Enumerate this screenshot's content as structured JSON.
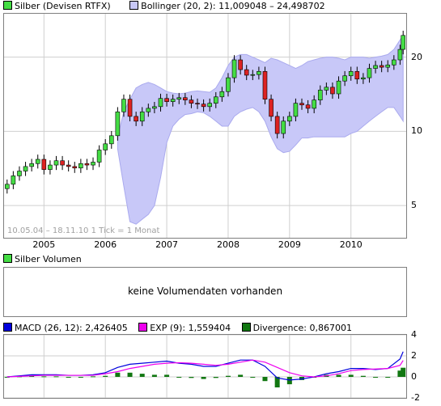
{
  "price_legend": {
    "series": [
      {
        "label": "Silber (Devisen RTFX)",
        "color": "#44dd44"
      },
      {
        "label": "Bollinger (20, 2): 11,009048 – 24,498702",
        "color": "#c8c8f8"
      }
    ]
  },
  "volume_legend": {
    "label": "Silber Volumen",
    "color": "#44dd44"
  },
  "volume_panel": {
    "message": "keine Volumendaten vorhanden"
  },
  "macd_legend": {
    "series": [
      {
        "label": "MACD (26, 12): 2,426405",
        "color": "#0000dd"
      },
      {
        "label": "EXP (9): 1,559404",
        "color": "#ee00ee"
      },
      {
        "label": "Divergence: 0,867001",
        "color": "#117711"
      }
    ]
  },
  "range_note": "10.05.04 – 18.11.10   1 Tick = 1 Monat",
  "x_axis": {
    "labels": [
      "2005",
      "2006",
      "2007",
      "2008",
      "2009",
      "2010"
    ]
  },
  "chart_data": [
    {
      "type": "candlestick",
      "title": "Silber (Devisen RTFX)",
      "yscale": "log",
      "ylim": [
        3.7,
        30
      ],
      "yticks": [
        5,
        10,
        20
      ],
      "ytick_labels": [
        "5",
        "10",
        "20"
      ],
      "xlim": [
        2004.35,
        2010.9
      ],
      "x": [
        2004.4,
        2004.5,
        2004.6,
        2004.7,
        2004.8,
        2004.9,
        2005.0,
        2005.1,
        2005.2,
        2005.3,
        2005.4,
        2005.5,
        2005.6,
        2005.7,
        2005.8,
        2005.9,
        2006.0,
        2006.1,
        2006.2,
        2006.3,
        2006.4,
        2006.5,
        2006.6,
        2006.7,
        2006.8,
        2006.9,
        2007.0,
        2007.1,
        2007.2,
        2007.3,
        2007.4,
        2007.5,
        2007.6,
        2007.7,
        2007.8,
        2007.9,
        2008.0,
        2008.1,
        2008.2,
        2008.3,
        2008.4,
        2008.5,
        2008.6,
        2008.7,
        2008.8,
        2008.9,
        2009.0,
        2009.1,
        2009.2,
        2009.3,
        2009.4,
        2009.5,
        2009.6,
        2009.7,
        2009.8,
        2009.9,
        2010.0,
        2010.1,
        2010.2,
        2010.3,
        2010.4,
        2010.5,
        2010.6,
        2010.7,
        2010.8,
        2010.85
      ],
      "close": [
        6.1,
        6.6,
        6.9,
        7.2,
        7.4,
        7.7,
        7.0,
        7.3,
        7.6,
        7.3,
        7.2,
        7.1,
        7.4,
        7.3,
        7.5,
        8.4,
        8.9,
        9.6,
        12.0,
        13.5,
        11.5,
        11.0,
        12.0,
        12.4,
        12.6,
        13.6,
        13.2,
        13.5,
        13.7,
        13.4,
        13.0,
        12.9,
        12.6,
        13.0,
        13.8,
        14.5,
        16.5,
        19.5,
        17.8,
        16.9,
        17.0,
        17.5,
        13.5,
        11.5,
        9.8,
        11.0,
        11.5,
        13.0,
        12.8,
        12.4,
        13.4,
        14.7,
        15.1,
        14.2,
        16.0,
        16.8,
        17.5,
        16.3,
        16.5,
        18.0,
        18.5,
        18.2,
        18.6,
        19.5,
        21.5,
        24.5
      ],
      "bollinger_upper": [
        null,
        null,
        null,
        null,
        null,
        null,
        null,
        null,
        null,
        null,
        null,
        null,
        null,
        null,
        null,
        null,
        null,
        null,
        9.5,
        12.0,
        13.5,
        15.0,
        15.5,
        15.8,
        15.5,
        15.0,
        14.5,
        14.3,
        14.2,
        14.3,
        14.5,
        14.6,
        14.5,
        14.4,
        15.0,
        16.5,
        18.5,
        20.0,
        20.5,
        20.5,
        20.0,
        19.5,
        19.0,
        19.8,
        19.5,
        19.0,
        18.5,
        18.0,
        18.5,
        19.2,
        19.5,
        19.8,
        20.0,
        20.0,
        19.8,
        19.5,
        20.0,
        20.0,
        20.0,
        19.8,
        20.0,
        20.2,
        20.5,
        21.5,
        23.5,
        24.5
      ],
      "bollinger_lower": [
        null,
        null,
        null,
        null,
        null,
        null,
        null,
        null,
        null,
        null,
        null,
        null,
        null,
        null,
        null,
        null,
        null,
        null,
        8.5,
        6.0,
        4.3,
        4.2,
        4.4,
        4.6,
        5.0,
        6.5,
        9.0,
        10.5,
        11.2,
        11.7,
        11.8,
        12.0,
        11.9,
        11.5,
        11.0,
        10.5,
        10.5,
        11.5,
        12.0,
        12.3,
        12.5,
        12.0,
        11.0,
        9.5,
        8.5,
        8.2,
        8.3,
        8.8,
        9.4,
        9.4,
        9.5,
        9.5,
        9.5,
        9.5,
        9.5,
        9.5,
        9.8,
        10.0,
        10.5,
        11.0,
        11.5,
        12.0,
        12.5,
        12.5,
        11.5,
        11.0
      ]
    },
    {
      "type": "bar",
      "title": "Silber Volumen",
      "values": []
    },
    {
      "type": "line",
      "title": "MACD",
      "ylim": [
        -2,
        4
      ],
      "yticks": [
        -2,
        0,
        2,
        4
      ],
      "ytick_labels": [
        "-2",
        "0",
        "2",
        "4"
      ],
      "xlim": [
        2004.35,
        2010.9
      ],
      "x": [
        2004.4,
        2004.6,
        2004.8,
        2005.0,
        2005.2,
        2005.4,
        2005.6,
        2005.8,
        2006.0,
        2006.2,
        2006.4,
        2006.6,
        2006.8,
        2007.0,
        2007.2,
        2007.4,
        2007.6,
        2007.8,
        2008.0,
        2008.2,
        2008.4,
        2008.6,
        2008.8,
        2009.0,
        2009.2,
        2009.4,
        2009.6,
        2009.8,
        2010.0,
        2010.2,
        2010.4,
        2010.6,
        2010.8,
        2010.85
      ],
      "series": [
        {
          "name": "MACD (26, 12)",
          "color": "#0000dd",
          "values": [
            0.0,
            0.1,
            0.2,
            0.2,
            0.2,
            0.15,
            0.15,
            0.2,
            0.4,
            0.9,
            1.2,
            1.3,
            1.4,
            1.5,
            1.3,
            1.2,
            1.0,
            1.0,
            1.3,
            1.6,
            1.6,
            1.0,
            -0.1,
            -0.3,
            -0.2,
            0.0,
            0.3,
            0.5,
            0.8,
            0.8,
            0.7,
            0.8,
            1.7,
            2.4
          ]
        },
        {
          "name": "EXP (9)",
          "color": "#ee00ee",
          "values": [
            0.0,
            0.05,
            0.1,
            0.15,
            0.15,
            0.15,
            0.15,
            0.15,
            0.3,
            0.5,
            0.8,
            1.0,
            1.2,
            1.3,
            1.35,
            1.3,
            1.2,
            1.1,
            1.2,
            1.4,
            1.6,
            1.4,
            0.9,
            0.4,
            0.1,
            0.0,
            0.1,
            0.3,
            0.6,
            0.7,
            0.75,
            0.8,
            1.1,
            1.56
          ]
        },
        {
          "name": "Divergence",
          "color": "#117711",
          "type": "bar",
          "values": [
            0.0,
            0.05,
            0.1,
            0.05,
            0.05,
            0.0,
            0.0,
            0.05,
            0.1,
            0.4,
            0.4,
            0.3,
            0.2,
            0.2,
            -0.05,
            -0.1,
            -0.2,
            -0.1,
            0.1,
            0.2,
            0.0,
            -0.4,
            -1.0,
            -0.7,
            -0.3,
            0.0,
            0.2,
            0.2,
            0.2,
            0.1,
            -0.05,
            0.0,
            0.6,
            0.87
          ]
        }
      ]
    }
  ]
}
